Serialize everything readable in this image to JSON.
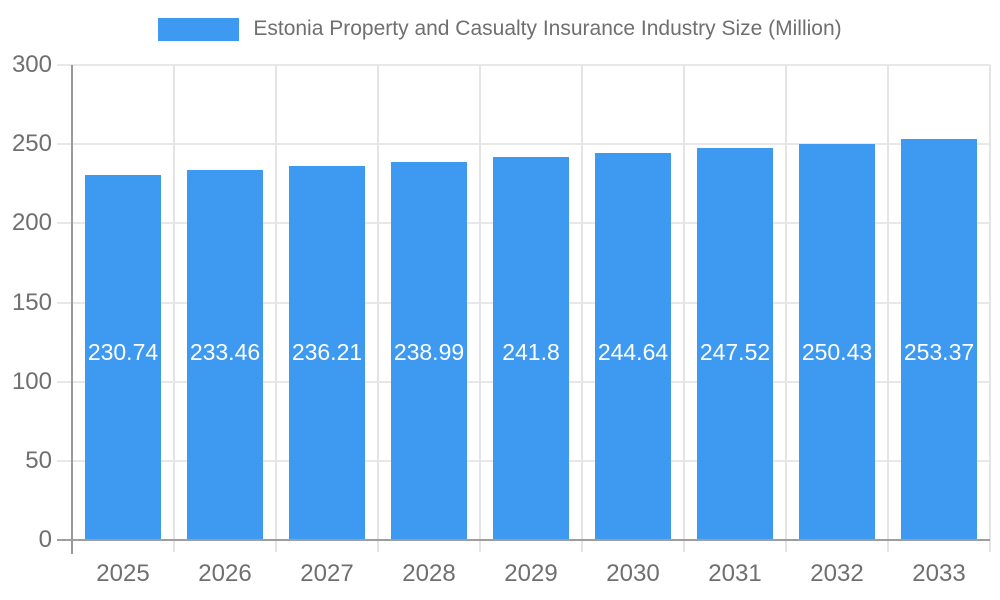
{
  "legend": {
    "title": "Estonia Property and Casualty Insurance Industry Size (Million)",
    "swatch_color": "#3d9af0"
  },
  "chart_data": {
    "type": "bar",
    "title": "Estonia Property and Casualty Insurance Industry Size (Million)",
    "categories": [
      "2025",
      "2026",
      "2027",
      "2028",
      "2029",
      "2030",
      "2031",
      "2032",
      "2033"
    ],
    "values": [
      230.74,
      233.46,
      236.21,
      238.99,
      241.8,
      244.64,
      247.52,
      250.43,
      253.37
    ],
    "value_labels": [
      "230.74",
      "233.46",
      "236.21",
      "238.99",
      "241.8",
      "244.64",
      "247.52",
      "250.43",
      "253.37"
    ],
    "xlabel": "",
    "ylabel": "",
    "ylim": [
      0,
      300
    ],
    "yticks": [
      0,
      50,
      100,
      150,
      200,
      250,
      300
    ],
    "grid": true,
    "legend_position": "top",
    "bar_color": "#3d9af0",
    "value_label_color": "#ffffff",
    "axis_color": "#9e9e9e",
    "grid_color": "#e8e8e8",
    "tick_label_color": "#6f6f6f"
  }
}
